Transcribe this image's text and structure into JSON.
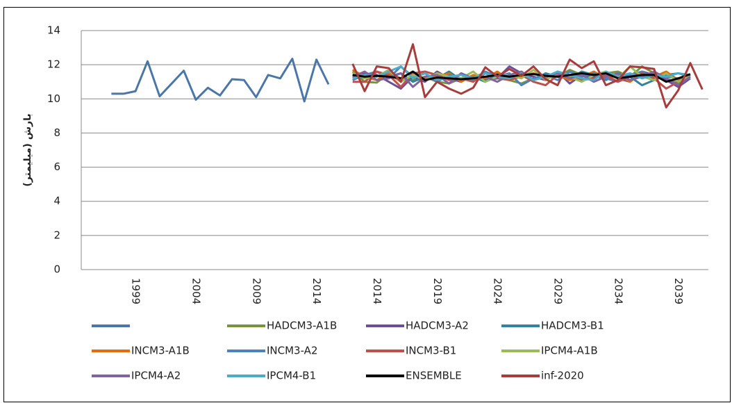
{
  "chart_data": {
    "type": "line",
    "y_label": "بارش (میلیمتر)",
    "categories": [
      null,
      null,
      null,
      null,
      "1999",
      null,
      null,
      null,
      null,
      "2004",
      null,
      null,
      null,
      null,
      "2009",
      null,
      null,
      null,
      null,
      "2014",
      null,
      null,
      null,
      null,
      "2014",
      null,
      null,
      null,
      null,
      "2019",
      null,
      null,
      null,
      null,
      "2024",
      null,
      null,
      null,
      null,
      "2029",
      null,
      null,
      null,
      null,
      "2034",
      null,
      null,
      null,
      null,
      "2039",
      null,
      null
    ],
    "ylim": [
      0,
      14
    ],
    "yticks": [
      0,
      2,
      4,
      6,
      8,
      10,
      12,
      14
    ],
    "grid": true,
    "series": [
      {
        "color": "#4a76a8",
        "values": [
          null,
          null,
          10.3,
          10.3,
          10.45,
          12.2,
          10.15,
          10.9,
          11.65,
          9.95,
          10.65,
          10.2,
          11.15,
          11.1,
          10.1,
          11.4,
          11.2,
          12.35,
          9.85,
          12.3,
          10.85,
          null,
          null,
          null,
          null,
          null,
          null,
          null,
          null,
          null,
          null,
          null,
          null,
          null,
          null,
          null,
          null,
          null,
          null,
          null,
          null,
          null,
          null,
          null,
          null,
          null,
          null,
          null,
          null,
          null,
          null,
          null
        ]
      },
      {
        "name": "HADCM3-A1B",
        "color": "#77933c",
        "values": [
          null,
          null,
          null,
          null,
          null,
          null,
          null,
          null,
          null,
          null,
          null,
          null,
          null,
          null,
          null,
          null,
          null,
          null,
          null,
          null,
          null,
          null,
          11.6,
          11.0,
          10.95,
          11.5,
          11.2,
          11.1,
          11.3,
          11.0,
          10.9,
          11.2,
          11.3,
          11.5,
          11.2,
          11.1,
          10.9,
          11.2,
          11.4,
          11.3,
          11.7,
          11.4,
          11.2,
          11.5,
          11.6,
          11.3,
          11.9,
          11.5,
          11.2,
          10.9,
          11.4,
          null
        ]
      },
      {
        "name": "HADCM3-A2",
        "color": "#6e4f96",
        "values": [
          null,
          null,
          null,
          null,
          null,
          null,
          null,
          null,
          null,
          null,
          null,
          null,
          null,
          null,
          null,
          null,
          null,
          null,
          null,
          null,
          null,
          null,
          11.2,
          11.5,
          11.4,
          11.0,
          10.6,
          11.3,
          11.0,
          11.6,
          11.2,
          11.0,
          11.4,
          11.1,
          11.2,
          11.9,
          11.5,
          11.3,
          11.1,
          11.6,
          10.9,
          11.4,
          11.3,
          11.6,
          11.2,
          11.0,
          11.6,
          11.4,
          11.1,
          10.7,
          11.2,
          null
        ]
      },
      {
        "name": "HADCM3-B1",
        "color": "#31849b",
        "values": [
          null,
          null,
          null,
          null,
          null,
          null,
          null,
          null,
          null,
          null,
          null,
          null,
          null,
          null,
          null,
          null,
          null,
          null,
          null,
          null,
          null,
          null,
          11.4,
          11.2,
          11.6,
          11.3,
          11.5,
          11.0,
          11.3,
          11.2,
          11.6,
          11.1,
          11.3,
          11.0,
          11.5,
          11.2,
          11.4,
          11.1,
          11.5,
          11.3,
          11.2,
          11.6,
          11.4,
          11.1,
          11.5,
          11.3,
          10.8,
          11.1,
          11.4,
          11.5,
          11.3,
          null
        ]
      },
      {
        "name": "INCM3-A1B",
        "color": "#e46c0a",
        "values": [
          null,
          null,
          null,
          null,
          null,
          null,
          null,
          null,
          null,
          null,
          null,
          null,
          null,
          null,
          null,
          null,
          null,
          null,
          null,
          null,
          null,
          null,
          11.7,
          11.3,
          11.1,
          11.5,
          11.0,
          11.4,
          11.2,
          11.3,
          11.5,
          11.0,
          11.4,
          11.2,
          11.6,
          11.1,
          11.3,
          11.5,
          11.2,
          11.4,
          11.1,
          11.3,
          11.6,
          11.2,
          11.4,
          11.0,
          11.5,
          11.3,
          11.6,
          11.1,
          11.4,
          null
        ]
      },
      {
        "name": "INCM3-A2",
        "color": "#4f81bd",
        "values": [
          null,
          null,
          null,
          null,
          null,
          null,
          null,
          null,
          null,
          null,
          null,
          null,
          null,
          null,
          null,
          null,
          null,
          null,
          null,
          null,
          null,
          null,
          11.1,
          11.4,
          11.6,
          11.2,
          11.9,
          11.3,
          11.5,
          11.0,
          11.4,
          11.2,
          11.1,
          11.6,
          11.3,
          11.5,
          10.8,
          11.2,
          11.4,
          11.1,
          11.6,
          11.3,
          11.5,
          11.2,
          11.0,
          11.4,
          11.6,
          11.2,
          11.3,
          11.2,
          11.2,
          null
        ]
      },
      {
        "name": "INCM3-B1",
        "color": "#c0504d",
        "values": [
          null,
          null,
          null,
          null,
          null,
          null,
          null,
          null,
          null,
          null,
          null,
          null,
          null,
          null,
          null,
          null,
          null,
          null,
          null,
          null,
          null,
          null,
          11.0,
          11.0,
          11.6,
          11.4,
          10.7,
          11.5,
          11.6,
          11.4,
          11.1,
          11.2,
          11.0,
          11.5,
          11.3,
          11.1,
          11.4,
          11.0,
          10.8,
          11.4,
          11.3,
          11.1,
          11.2,
          11.4,
          11.0,
          11.3,
          11.5,
          11.2,
          10.6,
          11.0,
          11.3,
          null
        ]
      },
      {
        "name": "IPCM4-A1B",
        "color": "#9bbb59",
        "values": [
          null,
          null,
          null,
          null,
          null,
          null,
          null,
          null,
          null,
          null,
          null,
          null,
          null,
          null,
          null,
          null,
          null,
          null,
          null,
          null,
          null,
          null,
          11.5,
          11.2,
          11.3,
          11.7,
          11.0,
          11.4,
          11.1,
          11.5,
          11.3,
          11.2,
          11.6,
          11.0,
          11.3,
          11.4,
          11.2,
          11.7,
          11.1,
          11.5,
          11.3,
          11.0,
          11.4,
          11.6,
          11.2,
          11.9,
          11.3,
          11.1,
          11.5,
          11.0,
          11.4,
          null
        ]
      },
      {
        "name": "IPCM4-A2",
        "color": "#8064a2",
        "values": [
          null,
          null,
          null,
          null,
          null,
          null,
          null,
          null,
          null,
          null,
          null,
          null,
          null,
          null,
          null,
          null,
          null,
          null,
          null,
          null,
          null,
          null,
          11.3,
          11.6,
          11.1,
          11.2,
          11.5,
          10.7,
          11.3,
          11.4,
          10.9,
          11.5,
          11.2,
          11.3,
          11.0,
          11.4,
          11.6,
          11.1,
          11.3,
          11.5,
          11.2,
          11.4,
          11.0,
          11.3,
          11.5,
          11.1,
          11.3,
          11.6,
          11.2,
          10.8,
          11.3,
          null
        ]
      },
      {
        "name": "IPCM4-B1",
        "color": "#4bacc6",
        "values": [
          null,
          null,
          null,
          null,
          null,
          null,
          null,
          null,
          null,
          null,
          null,
          null,
          null,
          null,
          null,
          null,
          null,
          null,
          null,
          null,
          null,
          null,
          11.2,
          11.4,
          11.3,
          11.6,
          11.9,
          11.2,
          11.5,
          11.1,
          11.3,
          11.4,
          11.2,
          11.5,
          11.3,
          11.2,
          11.5,
          11.1,
          11.3,
          11.6,
          11.4,
          11.2,
          11.1,
          11.6,
          11.3,
          11.5,
          11.2,
          11.4,
          11.3,
          11.5,
          11.4,
          null
        ]
      },
      {
        "name": "ENSEMBLE",
        "color": "#000000",
        "values": [
          null,
          null,
          null,
          null,
          null,
          null,
          null,
          null,
          null,
          null,
          null,
          null,
          null,
          null,
          null,
          null,
          null,
          null,
          null,
          null,
          null,
          null,
          11.4,
          11.3,
          11.35,
          11.3,
          11.2,
          11.6,
          11.1,
          11.25,
          11.2,
          11.15,
          11.2,
          11.3,
          11.4,
          11.3,
          11.4,
          11.45,
          11.35,
          11.3,
          11.4,
          11.5,
          11.4,
          11.5,
          11.2,
          11.3,
          11.4,
          11.4,
          11.0,
          11.2,
          11.45,
          null
        ]
      },
      {
        "name": "inf-2020",
        "color": "#a83c3c",
        "values": [
          null,
          null,
          null,
          null,
          null,
          null,
          null,
          null,
          null,
          null,
          null,
          null,
          null,
          null,
          null,
          null,
          null,
          null,
          null,
          null,
          null,
          null,
          12.05,
          10.45,
          11.9,
          11.8,
          11.0,
          13.2,
          10.1,
          11.0,
          10.6,
          10.3,
          10.65,
          11.85,
          11.3,
          11.75,
          11.35,
          11.9,
          11.15,
          10.8,
          12.3,
          11.8,
          12.2,
          10.8,
          11.1,
          11.9,
          11.85,
          11.75,
          9.5,
          10.5,
          12.1,
          10.55
        ]
      }
    ]
  }
}
